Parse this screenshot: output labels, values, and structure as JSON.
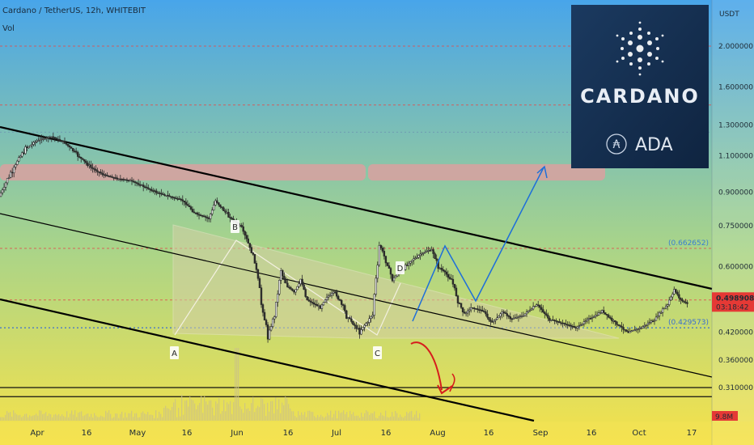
{
  "header": {
    "title": "Cardano / TetherUS, 12h, WHITEBIT",
    "indicator": "Vol"
  },
  "logo": {
    "brand": "CARDANO",
    "ticker": "ADA"
  },
  "colors": {
    "bg_top": "#48a5ea",
    "bg_mid": "#a8d48a",
    "bg_bottom": "#f6e24a",
    "candle": "#2b2b2b",
    "channel": "#000000",
    "resistance_zone": "#d9a0a0",
    "dotted_red": "#e05050",
    "dotted_blue": "#3a6fd0",
    "projection": "#1e6fd9",
    "down_arrow": "#d61d1d",
    "price_badge": "#e53935"
  },
  "chart_data": {
    "type": "candlestick",
    "y_scale": "log",
    "y_axis_unit": "USDT",
    "x_ticks": [
      "Apr",
      "16",
      "May",
      "16",
      "Jun",
      "16",
      "Jul",
      "16",
      "Aug",
      "16",
      "Sep",
      "16",
      "Oct",
      "17"
    ],
    "y_ticks": [
      "2.000000",
      "1.600000",
      "1.300000",
      "1.100000",
      "0.900000",
      "0.750000",
      "0.600000",
      "0.420000",
      "0.360000",
      "0.310000"
    ],
    "last_price": "0.498908",
    "countdown": "03:18:42",
    "fib_levels": [
      {
        "label": "(0.662652)",
        "value": 0.662652,
        "color": "#3a7fd0"
      },
      {
        "label": "(0.429573)",
        "value": 0.429573,
        "color": "#3a6fd0"
      }
    ],
    "volume_label": "9.8M",
    "pattern_points": [
      {
        "label": "A",
        "date": "May 10",
        "price": 0.4
      },
      {
        "label": "B",
        "date": "Jun 1",
        "price": 0.7
      },
      {
        "label": "C",
        "date": "Jul 11",
        "price": 0.41
      },
      {
        "label": "D",
        "date": "Jul 20",
        "price": 0.55
      }
    ],
    "horizontal_levels": [
      0.31,
      0.295
    ],
    "resistance_zone": [
      0.96,
      1.05
    ]
  }
}
